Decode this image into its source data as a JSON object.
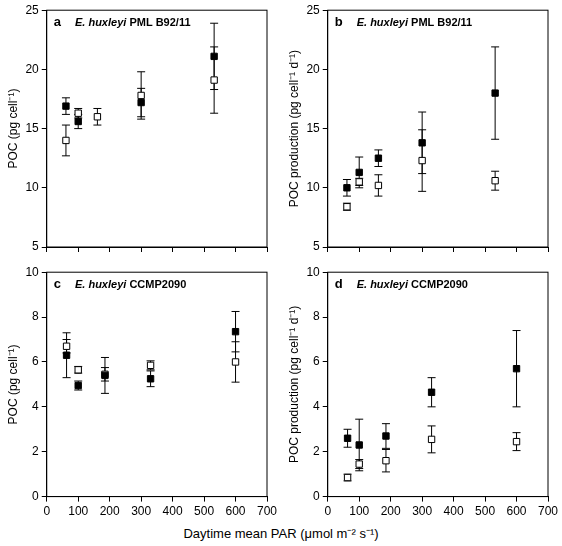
{
  "x_label": "Daytime mean PAR (μmol m⁻² s⁻¹)",
  "chart_data": [
    {
      "type": "scatter",
      "panel_label": "a",
      "title": "E. huxleyi PML B92/11",
      "y_label": "POC (pg cell⁻¹)",
      "xlim": [
        0,
        700
      ],
      "xticks": [
        0,
        100,
        200,
        300,
        400,
        500,
        600,
        700
      ],
      "ylim": [
        5,
        25
      ],
      "yticks": [
        5,
        10,
        15,
        20,
        25
      ],
      "grid": false,
      "tick_labels": "y",
      "x": [
        61,
        100,
        161,
        300,
        532
      ],
      "series": [
        {
          "color": "#000000",
          "marker": "square",
          "values": [
            16.9,
            15.6,
            null,
            17.2,
            21.1
          ],
          "errors": [
            0.7,
            0.6,
            null,
            1.2,
            2.8
          ]
        },
        {
          "color": "#000000",
          "marker": "open_square",
          "values": [
            14.0,
            16.3,
            16.0,
            17.8,
            19.1
          ],
          "errors": [
            1.3,
            0.4,
            0.7,
            2.0,
            2.8
          ]
        }
      ]
    },
    {
      "type": "scatter",
      "panel_label": "b",
      "title": "E. huxleyi PML B92/11",
      "y_label": "POC production (pg cell⁻¹ d⁻¹)",
      "xlim": [
        0,
        700
      ],
      "xticks": [
        0,
        100,
        200,
        300,
        400,
        500,
        600,
        700
      ],
      "ylim": [
        5,
        25
      ],
      "yticks": [
        5,
        10,
        15,
        20,
        25
      ],
      "grid": false,
      "tick_labels": "y",
      "x": [
        61,
        100,
        161,
        300,
        532
      ],
      "series": [
        {
          "color": "#000000",
          "marker": "square",
          "values": [
            10.0,
            11.3,
            12.5,
            13.8,
            18.0
          ],
          "errors": [
            0.7,
            1.3,
            0.7,
            2.6,
            3.9
          ]
        },
        {
          "color": "#000000",
          "marker": "open_square",
          "values": [
            8.4,
            10.5,
            10.2,
            12.3,
            10.6
          ],
          "errors": [
            0.3,
            0.3,
            0.9,
            2.6,
            0.8
          ]
        }
      ]
    },
    {
      "type": "scatter",
      "panel_label": "c",
      "title": "E. huxleyi CCMP2090",
      "y_label": "POC (pg cell⁻¹)",
      "xlim": [
        0,
        700
      ],
      "xticks": [
        0,
        100,
        200,
        300,
        400,
        500,
        600,
        700
      ],
      "ylim": [
        0,
        10
      ],
      "yticks": [
        0,
        2,
        4,
        6,
        8,
        10
      ],
      "grid": false,
      "tick_labels": true,
      "x": [
        63,
        100,
        185,
        330,
        600
      ],
      "series": [
        {
          "color": "#000000",
          "marker": "square",
          "values": [
            6.3,
            4.95,
            5.4,
            5.25,
            7.35
          ],
          "errors": [
            1.0,
            0.2,
            0.8,
            0.35,
            0.9
          ]
        },
        {
          "color": "#000000",
          "marker": "open_square",
          "values": [
            6.7,
            5.65,
            5.45,
            5.85,
            6.0
          ],
          "errors": [
            0.3,
            0.15,
            0.3,
            0.2,
            0.9
          ]
        }
      ]
    },
    {
      "type": "scatter",
      "panel_label": "d",
      "title": "E. huxleyi CCMP2090",
      "y_label": "POC production (pg cell⁻¹ d⁻¹)",
      "xlim": [
        0,
        700
      ],
      "xticks": [
        0,
        100,
        200,
        300,
        400,
        500,
        600,
        700
      ],
      "ylim": [
        0,
        10
      ],
      "yticks": [
        0,
        2,
        4,
        6,
        8,
        10
      ],
      "grid": false,
      "tick_labels": true,
      "x": [
        63,
        100,
        185,
        330,
        600
      ],
      "series": [
        {
          "color": "#000000",
          "marker": "square",
          "values": [
            2.6,
            2.3,
            2.7,
            4.65,
            5.7
          ],
          "errors": [
            0.4,
            1.15,
            0.55,
            0.65,
            1.7
          ]
        },
        {
          "color": "#000000",
          "marker": "open_square",
          "values": [
            0.85,
            1.45,
            1.6,
            2.55,
            2.45
          ],
          "errors": [
            0.15,
            0.2,
            0.5,
            0.6,
            0.4
          ]
        }
      ]
    }
  ]
}
